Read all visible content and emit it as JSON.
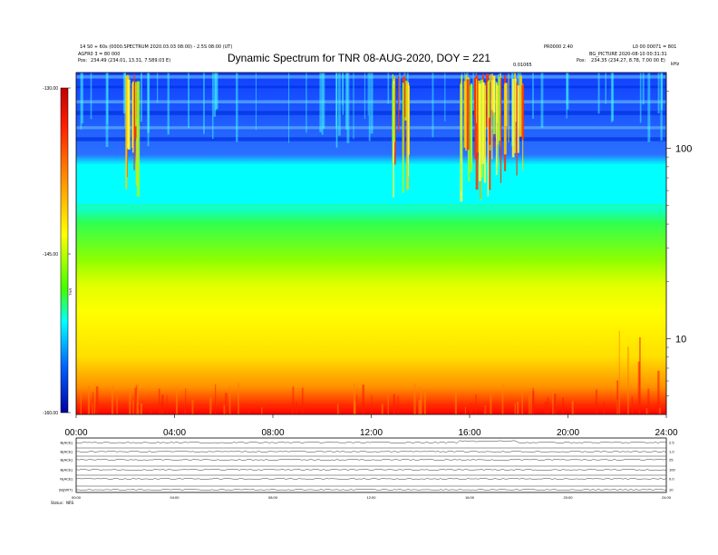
{
  "header": {
    "left_line1": "14 S0 + 60s (0000.SPECTRUM 2020.03.03 08:00) - 2.5S 08:00 (UT)",
    "left_line2": "AGFR0 3 = 80 000",
    "left_line3_label": "Pos:",
    "left_line3_value": "234.49 (234.01, 13.31, 7.589.03 E)",
    "right_line1_a": "PR0000 2.40",
    "right_line1_b": "L0 00 00071 = 801",
    "right_line2": "BG_PICTURE  2020-08-10 00:31:31",
    "right_line3_label": "Pos:",
    "right_line3_value": "234.35 (234.27, 8.78, 7.00 00 E)",
    "mid_label": "0.01065",
    "corner_label": "kHz"
  },
  "title": "Dynamic Spectrum for TNR 08-AUG-2020, DOY = 221",
  "colorbar": {
    "ticks": [
      "-130.00",
      "-145.00",
      "-160.00"
    ],
    "label": "TNR",
    "colors": [
      "#d00000",
      "#ff0000",
      "#ff8000",
      "#ffff00",
      "#00ff00",
      "#00ffff",
      "#0060ff",
      "#0000a0"
    ]
  },
  "chart_data": {
    "type": "heatmap",
    "title": "Dynamic Spectrum for TNR 08-AUG-2020, DOY = 221",
    "x_ticks": [
      "00:00",
      "04:00",
      "08:00",
      "12:00",
      "16:00",
      "20:00",
      "24:00"
    ],
    "x_range_hours": [
      0,
      24
    ],
    "y_scale": "log",
    "y_tick_labels": [
      "100",
      "10"
    ],
    "y_range_khz": [
      4,
      250
    ],
    "color_range": [
      -160,
      -130
    ],
    "bands": [
      {
        "name": "strong-emission",
        "khz": [
          100,
          250
        ],
        "color": "#0040ff"
      },
      {
        "name": "cyan-band",
        "khz": [
          50,
          100
        ],
        "color": "#00ffff"
      },
      {
        "name": "green-band",
        "khz": [
          20,
          50
        ],
        "color": "#60ff00"
      },
      {
        "name": "yellow-band",
        "khz": [
          7,
          20
        ],
        "color": "#ffff00"
      },
      {
        "name": "orange-band",
        "khz": [
          4.5,
          7
        ],
        "color": "#ff9000"
      },
      {
        "name": "red-floor",
        "khz": [
          4,
          4.5
        ],
        "color": "#ff0000"
      }
    ],
    "burst_intervals_hours": [
      [
        15.6,
        18.2
      ],
      [
        12.8,
        13.6
      ],
      [
        2.0,
        2.5
      ]
    ]
  },
  "lower_panel": {
    "rows": [
      {
        "label": "B(ACE)",
        "right": "2.5"
      },
      {
        "label": "B(ACE)",
        "right": "1.0"
      },
      {
        "label": "B(ACE)",
        "right": "25"
      },
      {
        "label": "B(ACE)",
        "right": "100"
      },
      {
        "label": "N(ACE)",
        "right": "0.0"
      },
      {
        "label": "|B|(WIT)",
        "right": "10"
      }
    ],
    "x_ticks": [
      "00:00",
      "04:00",
      "08:00",
      "12:00",
      "16:00",
      "20:00",
      "24:00"
    ],
    "footer_a": "Status:",
    "footer_b": "NRS"
  }
}
